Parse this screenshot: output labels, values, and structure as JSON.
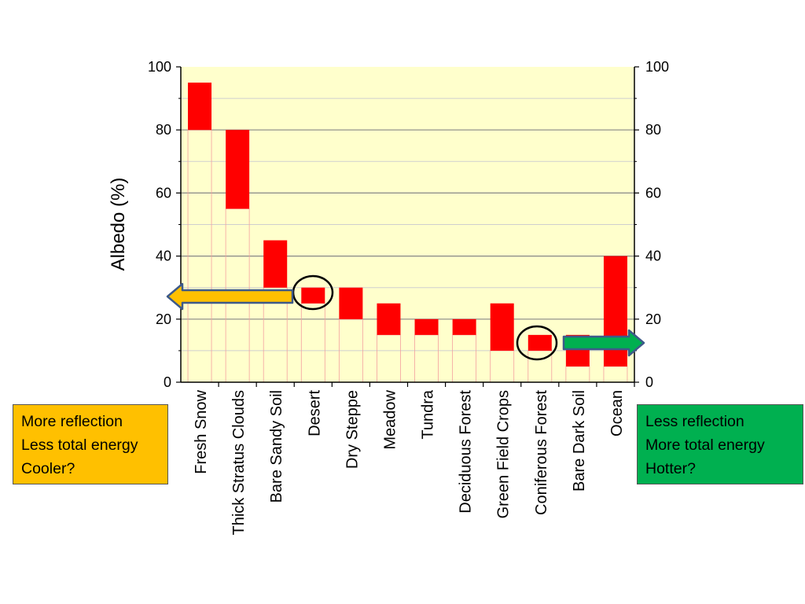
{
  "chart_data": {
    "type": "bar",
    "title": "",
    "xlabel": "",
    "ylabel": "Albedo (%)",
    "ylim": [
      0,
      100
    ],
    "y_ticks": [
      "0",
      "20",
      "40",
      "60",
      "80",
      "100"
    ],
    "right_axis": true,
    "grid": true,
    "categories": [
      "Fresh Snow",
      "Thick Stratus Clouds",
      "Bare Sandy Soil",
      "Desert",
      "Dry Steppe",
      "Meadow",
      "Tundra",
      "Deciduous Forest",
      "Green Field Crops",
      "Coniferous Forest",
      "Bare Dark Soil",
      "Ocean"
    ],
    "ranges": [
      [
        80,
        95
      ],
      [
        55,
        80
      ],
      [
        30,
        45
      ],
      [
        25,
        30
      ],
      [
        20,
        30
      ],
      [
        15,
        25
      ],
      [
        15,
        20
      ],
      [
        15,
        20
      ],
      [
        10,
        25
      ],
      [
        10,
        15
      ],
      [
        5,
        15
      ],
      [
        5,
        40
      ]
    ],
    "circled": [
      "Desert",
      "Coniferous Forest"
    ],
    "colors": {
      "bar": "#ff0000",
      "plot_bg": "#ffffcc",
      "left_box": "#ffc000",
      "right_box": "#00b050"
    }
  },
  "annotations": {
    "left_box": [
      "More reflection",
      "Less total energy",
      "Cooler?"
    ],
    "right_box": [
      "Less reflection",
      "More total energy",
      "Hotter?"
    ],
    "left_arrow": "arrow-left-icon",
    "right_arrow": "arrow-right-icon"
  }
}
